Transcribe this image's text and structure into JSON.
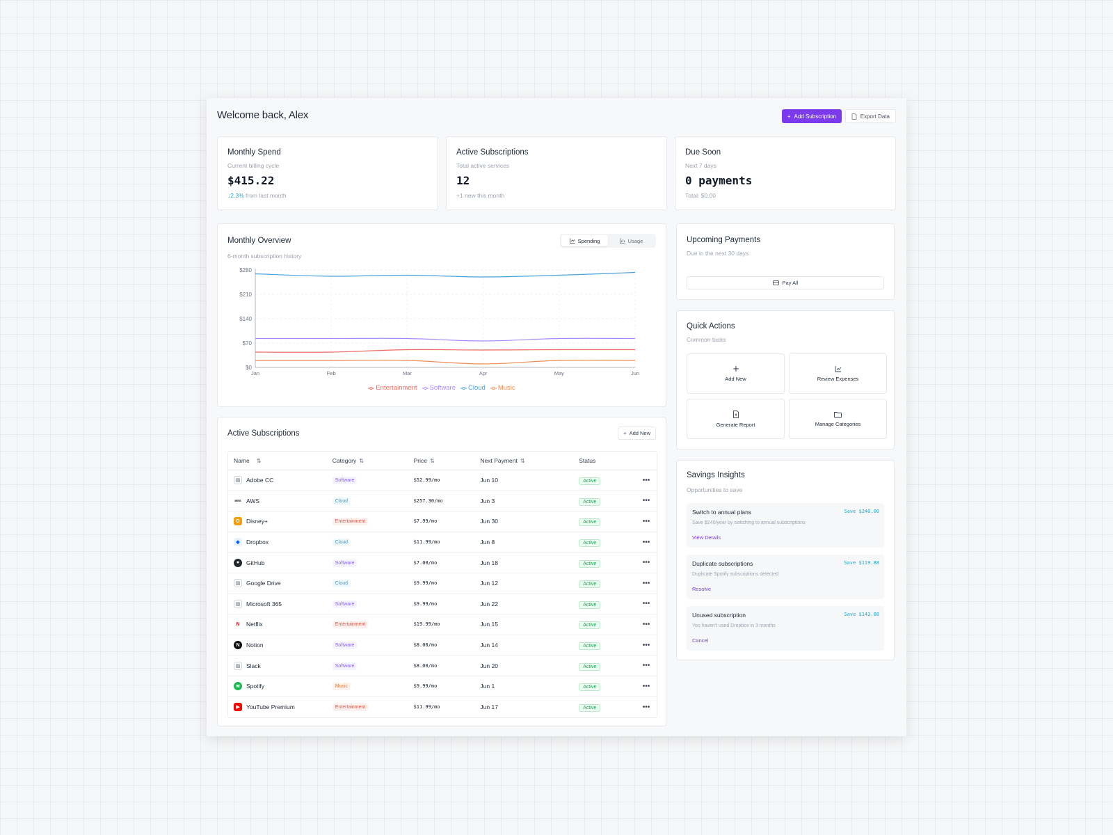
{
  "header": {
    "welcome": "Welcome back, Alex",
    "add_subscription": "Add Subscription",
    "export_data": "Export Data"
  },
  "stats": [
    {
      "title": "Monthly Spend",
      "subtitle": "Current billing cycle",
      "value": "$415.22",
      "change": "↓2.3%",
      "footer": "from last month"
    },
    {
      "title": "Active Subscriptions",
      "subtitle": "Total active services",
      "value": "12",
      "footer": "+1 new this month"
    },
    {
      "title": "Due Soon",
      "subtitle": "Next 7 days",
      "value": "0 payments",
      "footer": "Total: $0.00"
    }
  ],
  "overview": {
    "title": "Monthly Overview",
    "subtitle": "6-month subscription history",
    "toggle_spending": "Spending",
    "toggle_usage": "Usage",
    "active_toggle": "Spending"
  },
  "chart_data": {
    "type": "line",
    "categories": [
      "Jan",
      "Feb",
      "Mar",
      "Apr",
      "May",
      "Jun"
    ],
    "yticks": [
      "$0",
      "$70",
      "$140",
      "$210",
      "$280"
    ],
    "ylim": [
      0,
      280
    ],
    "grid": true,
    "legend_position": "bottom",
    "series": [
      {
        "name": "Entertainment",
        "color": "#ec6a5e",
        "values": [
          44,
          44,
          51,
          50,
          51,
          51
        ]
      },
      {
        "name": "Software",
        "color": "#a78bfa",
        "values": [
          83,
          83,
          83,
          76,
          83,
          83
        ]
      },
      {
        "name": "Cloud",
        "color": "#4a9fd8",
        "values": [
          269,
          262,
          265,
          260,
          265,
          273
        ]
      },
      {
        "name": "Music",
        "color": "#ee8a4e",
        "values": [
          20,
          20,
          20,
          10,
          20,
          20
        ]
      }
    ]
  },
  "subscriptions": {
    "title": "Active Subscriptions",
    "add_new": "Add New",
    "columns": [
      "Name",
      "Category",
      "Price",
      "Next Payment",
      "Status"
    ],
    "rows": [
      {
        "name": "Adobe CC",
        "category": "Software",
        "cat_class": "software",
        "price": "$52.99/mo",
        "next": "Jun 10",
        "status": "Active",
        "logo": "broken-image-icon"
      },
      {
        "name": "AWS",
        "category": "Cloud",
        "cat_class": "cloud",
        "price": "$257.30/mo",
        "next": "Jun 3",
        "status": "Active",
        "logo": "aws-icon"
      },
      {
        "name": "Disney+",
        "category": "Entertainment",
        "cat_class": "entertainment",
        "price": "$7.99/mo",
        "next": "Jun 30",
        "status": "Active",
        "logo": "disney-icon"
      },
      {
        "name": "Dropbox",
        "category": "Cloud",
        "cat_class": "cloud",
        "price": "$11.99/mo",
        "next": "Jun 8",
        "status": "Active",
        "logo": "dropbox-icon"
      },
      {
        "name": "GitHub",
        "category": "Software",
        "cat_class": "software",
        "price": "$7.00/mo",
        "next": "Jun 18",
        "status": "Active",
        "logo": "github-icon"
      },
      {
        "name": "Google Drive",
        "category": "Cloud",
        "cat_class": "cloud",
        "price": "$9.99/mo",
        "next": "Jun 12",
        "status": "Active",
        "logo": "broken-image-icon"
      },
      {
        "name": "Microsoft 365",
        "category": "Software",
        "cat_class": "software",
        "price": "$9.99/mo",
        "next": "Jun 22",
        "status": "Active",
        "logo": "broken-image-icon"
      },
      {
        "name": "Netflix",
        "category": "Entertainment",
        "cat_class": "entertainment",
        "price": "$19.99/mo",
        "next": "Jun 15",
        "status": "Active",
        "logo": "netflix-icon"
      },
      {
        "name": "Notion",
        "category": "Software",
        "cat_class": "software",
        "price": "$8.00/mo",
        "next": "Jun 14",
        "status": "Active",
        "logo": "notion-icon"
      },
      {
        "name": "Slack",
        "category": "Software",
        "cat_class": "software",
        "price": "$8.00/mo",
        "next": "Jun 20",
        "status": "Active",
        "logo": "broken-image-icon"
      },
      {
        "name": "Spotify",
        "category": "Music",
        "cat_class": "music",
        "price": "$9.99/mo",
        "next": "Jun 1",
        "status": "Active",
        "logo": "spotify-icon"
      },
      {
        "name": "YouTube Premium",
        "category": "Entertainment",
        "cat_class": "entertainment",
        "price": "$11.99/mo",
        "next": "Jun 17",
        "status": "Active",
        "logo": "youtube-icon"
      }
    ]
  },
  "upcoming": {
    "title": "Upcoming Payments",
    "subtitle": "Due in the next 30 days",
    "pay_all": "Pay All"
  },
  "quick_actions": {
    "title": "Quick Actions",
    "subtitle": "Common tasks",
    "items": [
      {
        "label": "Add New",
        "icon": "plus-icon"
      },
      {
        "label": "Review Expenses",
        "icon": "chart-icon"
      },
      {
        "label": "Generate Report",
        "icon": "report-icon"
      },
      {
        "label": "Manage Categories",
        "icon": "folder-icon"
      }
    ]
  },
  "savings": {
    "title": "Savings Insights",
    "subtitle": "Opportunities to save",
    "items": [
      {
        "title": "Switch to annual plans",
        "desc": "Save $240/year by switching to annual subscriptions",
        "action": "View Details",
        "save": "Save $240.00"
      },
      {
        "title": "Duplicate subscriptions",
        "desc": "Duplicate Spotify subscriptions detected",
        "action": "Resolve",
        "save": "Save $119.88"
      },
      {
        "title": "Unused subscription",
        "desc": "You haven't used Dropbox in 3 months",
        "action": "Cancel",
        "save": "Save $143.88"
      }
    ]
  }
}
